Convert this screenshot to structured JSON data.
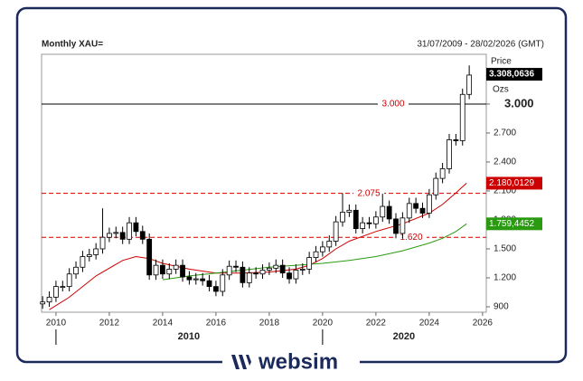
{
  "chart_data": {
    "type": "candlestick",
    "title": "Monthly XAU=",
    "subtitle": "31/07/2009 - 28/02/2026 (GMT)",
    "x": [
      2009.5,
      2009.75,
      2010,
      2010.25,
      2010.5,
      2010.75,
      2011,
      2011.25,
      2011.5,
      2011.75,
      2012,
      2012.25,
      2012.5,
      2012.75,
      2013,
      2013.25,
      2013.5,
      2013.75,
      2014,
      2014.25,
      2014.5,
      2014.75,
      2015,
      2015.25,
      2015.5,
      2015.75,
      2016,
      2016.25,
      2016.5,
      2016.75,
      2017,
      2017.25,
      2017.5,
      2017.75,
      2018,
      2018.25,
      2018.5,
      2018.75,
      2019,
      2019.25,
      2019.5,
      2019.75,
      2020,
      2020.25,
      2020.5,
      2020.75,
      2021,
      2021.25,
      2021.5,
      2021.75,
      2022,
      2022.25,
      2022.5,
      2022.75,
      2023,
      2023.25,
      2023.5,
      2023.75,
      2024,
      2024.25,
      2024.5,
      2024.75,
      2025,
      2025.25,
      2025.5
    ],
    "open": [
      930,
      950,
      1000,
      1110,
      1110,
      1240,
      1310,
      1420,
      1440,
      1500,
      1620,
      1660,
      1670,
      1600,
      1770,
      1680,
      1600,
      1230,
      1330,
      1240,
      1290,
      1330,
      1210,
      1180,
      1190,
      1170,
      1110,
      1060,
      1230,
      1320,
      1310,
      1150,
      1250,
      1240,
      1280,
      1300,
      1330,
      1250,
      1190,
      1280,
      1290,
      1410,
      1470,
      1520,
      1580,
      1780,
      1880,
      1900,
      1710,
      1770,
      1760,
      1830,
      1940,
      1810,
      1660,
      1820,
      1970,
      1920,
      1870,
      2060,
      2230,
      2330,
      2630,
      2620,
      3100
    ],
    "high": [
      1010,
      1060,
      1170,
      1170,
      1300,
      1370,
      1480,
      1500,
      1560,
      1920,
      1720,
      1730,
      1730,
      1830,
      1830,
      1740,
      1660,
      1390,
      1390,
      1350,
      1390,
      1390,
      1270,
      1250,
      1250,
      1230,
      1170,
      1290,
      1380,
      1380,
      1370,
      1310,
      1310,
      1340,
      1360,
      1390,
      1390,
      1310,
      1340,
      1350,
      1470,
      1530,
      1580,
      1640,
      1840,
      2075,
      1960,
      1960,
      1830,
      1830,
      1890,
      2070,
      2000,
      1870,
      1880,
      2030,
      2030,
      1980,
      2120,
      2290,
      2390,
      2690,
      2690,
      3160,
      3400
    ],
    "low": [
      880,
      900,
      950,
      1060,
      1060,
      1190,
      1260,
      1370,
      1390,
      1450,
      1570,
      1610,
      1550,
      1550,
      1630,
      1550,
      1180,
      1180,
      1190,
      1190,
      1240,
      1160,
      1130,
      1130,
      1120,
      1060,
      1010,
      1010,
      1180,
      1260,
      1100,
      1100,
      1190,
      1190,
      1230,
      1250,
      1200,
      1140,
      1140,
      1230,
      1240,
      1360,
      1420,
      1470,
      1530,
      1730,
      1830,
      1660,
      1660,
      1710,
      1710,
      1780,
      1760,
      1610,
      1610,
      1770,
      1870,
      1820,
      1820,
      2010,
      2180,
      2280,
      2570,
      2570,
      3050
    ],
    "close": [
      950,
      1000,
      1110,
      1110,
      1240,
      1310,
      1420,
      1440,
      1500,
      1620,
      1660,
      1670,
      1600,
      1770,
      1680,
      1600,
      1230,
      1330,
      1240,
      1290,
      1330,
      1210,
      1180,
      1190,
      1170,
      1110,
      1060,
      1230,
      1320,
      1310,
      1150,
      1250,
      1240,
      1280,
      1300,
      1330,
      1250,
      1190,
      1280,
      1290,
      1410,
      1470,
      1520,
      1580,
      1780,
      1880,
      1900,
      1710,
      1770,
      1760,
      1830,
      1940,
      1810,
      1660,
      1820,
      1970,
      1920,
      1870,
      2060,
      2230,
      2330,
      2630,
      2620,
      3100,
      3300
    ],
    "lines": [
      {
        "color": "#cc0000",
        "x": [
          2009.75,
          2010.5,
          2011.5,
          2012.5,
          2013,
          2013.5,
          2014,
          2015,
          2016,
          2017,
          2018,
          2019,
          2019.5,
          2020,
          2020.5,
          2021,
          2022,
          2023,
          2024,
          2024.5,
          2025,
          2025.4
        ],
        "values": [
          870,
          1000,
          1220,
          1380,
          1420,
          1400,
          1350,
          1290,
          1250,
          1250,
          1260,
          1290,
          1330,
          1400,
          1500,
          1580,
          1680,
          1760,
          1870,
          1960,
          2080,
          2180
        ],
        "tag": {
          "value": 2180.0129,
          "label": "2.180,0129"
        }
      },
      {
        "color": "#2a9a10",
        "x": [
          2014,
          2015,
          2016,
          2017,
          2018,
          2019,
          2020,
          2021,
          2022,
          2023,
          2024,
          2024.5,
          2025,
          2025.4
        ],
        "values": [
          1180,
          1220,
          1250,
          1280,
          1310,
          1330,
          1350,
          1380,
          1420,
          1480,
          1560,
          1610,
          1680,
          1760
        ],
        "tag": {
          "value": 1759.4452,
          "label": "1.759,4452"
        }
      }
    ],
    "price_tag": {
      "header": "Price",
      "value": 3308.0636,
      "label": "3.308,0636"
    },
    "unit": "Ozs",
    "hlines": [
      {
        "value": 3000,
        "label": "3.000",
        "color": "#000000",
        "dashed": false
      },
      {
        "value": 2075,
        "label": "2.075",
        "color": "#cc0000",
        "dashed": true
      },
      {
        "value": 1620,
        "label": "1.620",
        "color": "#cc0000",
        "dashed": true
      }
    ],
    "xlim": [
      2009.46,
      2026.14
    ],
    "ylim": [
      844,
      3515
    ],
    "xticks": [
      2010,
      2012,
      2014,
      2016,
      2018,
      2020,
      2022,
      2024,
      2026
    ],
    "era_ticks": [
      2010,
      2020
    ],
    "yticks": [
      900,
      {
        "value": 1200,
        "label": "1.200"
      },
      {
        "value": 1500,
        "label": "1.500"
      },
      {
        "value": 1800,
        "label": "1.800"
      },
      {
        "value": 2100,
        "label": "2.100"
      },
      {
        "value": 2400,
        "label": "2.400"
      },
      {
        "value": 2700,
        "label": "2.700"
      },
      {
        "value": 3000,
        "label": "3.000"
      }
    ]
  },
  "brand": "websim"
}
